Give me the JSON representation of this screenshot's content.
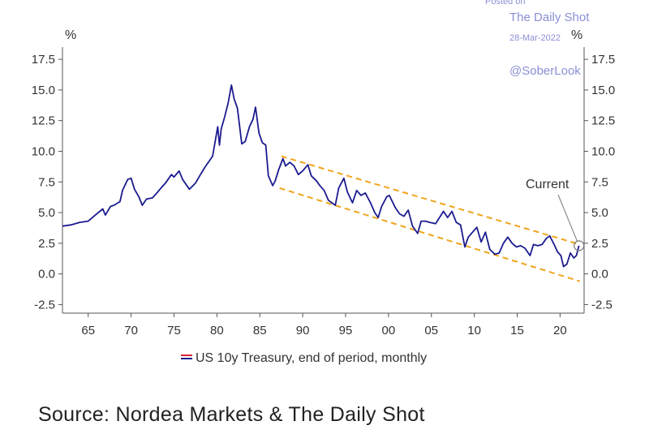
{
  "watermark": {
    "posted": "Posted on",
    "site": "The Daily Shot",
    "date": "28-Mar-2022",
    "handle": "@SoberLook"
  },
  "source_text": "Source: Nordea Markets & The Daily Shot",
  "chart_data": {
    "type": "line",
    "title": "",
    "xlabel": "",
    "ylabel": "%",
    "ylabel_right": "%",
    "xlim": [
      1962,
      2022.8
    ],
    "ylim": [
      -3.2,
      18.5
    ],
    "x_ticks": [
      1965,
      1970,
      1975,
      1980,
      1985,
      1990,
      1995,
      2000,
      2005,
      2010,
      2015,
      2020
    ],
    "x_tick_labels": [
      "65",
      "70",
      "75",
      "80",
      "85",
      "90",
      "95",
      "00",
      "05",
      "10",
      "15",
      "20"
    ],
    "y_ticks": [
      -2.5,
      0,
      2.5,
      5,
      7.5,
      10,
      12.5,
      15,
      17.5
    ],
    "y_tick_labels": [
      "-2.5",
      "0.0",
      "2.5",
      "5.0",
      "7.5",
      "10.0",
      "12.5",
      "15.0",
      "17.5"
    ],
    "series": [
      {
        "name": "US 10y Treasury, end of period, monthly",
        "color": "#1b1b8f",
        "x": [
          1962,
          1963,
          1964,
          1965,
          1966,
          1966.7,
          1967,
          1967.6,
          1968,
          1968.7,
          1969,
          1969.6,
          1970,
          1970.4,
          1970.9,
          1971.3,
          1971.8,
          1972.5,
          1973,
          1973.6,
          1974,
          1974.7,
          1975,
          1975.6,
          1976,
          1976.8,
          1977.5,
          1978,
          1978.6,
          1979,
          1979.5,
          1980.1,
          1980.3,
          1980.5,
          1980.9,
          1981.3,
          1981.7,
          1982,
          1982.4,
          1982.9,
          1983.3,
          1983.8,
          1984.2,
          1984.5,
          1984.9,
          1985.3,
          1985.7,
          1986,
          1986.5,
          1986.8,
          1987.2,
          1987.7,
          1988,
          1988.5,
          1989,
          1989.5,
          1990,
          1990.6,
          1991,
          1991.6,
          1992,
          1992.5,
          1993,
          1993.8,
          1994.2,
          1994.8,
          1995.2,
          1995.8,
          1996.3,
          1996.8,
          1997.3,
          1997.9,
          1998.4,
          1998.8,
          1999.2,
          1999.8,
          2000.1,
          2000.8,
          2001.3,
          2001.8,
          2002.3,
          2002.8,
          2003.4,
          2003.8,
          2004.3,
          2004.8,
          2005.5,
          2006.4,
          2006.9,
          2007.4,
          2007.9,
          2008.4,
          2008.9,
          2009.3,
          2009.8,
          2010.3,
          2010.8,
          2011.3,
          2011.8,
          2012.4,
          2012.9,
          2013.4,
          2013.9,
          2014.4,
          2014.9,
          2015.4,
          2015.9,
          2016.5,
          2016.9,
          2017.4,
          2017.9,
          2018.4,
          2018.8,
          2019.3,
          2019.7,
          2020.1,
          2020.4,
          2020.8,
          2021.2,
          2021.6,
          2021.9,
          2022.2
        ],
        "y": [
          3.9,
          4.0,
          4.2,
          4.3,
          4.9,
          5.3,
          4.8,
          5.5,
          5.6,
          5.9,
          6.8,
          7.7,
          7.8,
          6.9,
          6.3,
          5.6,
          6.1,
          6.2,
          6.6,
          7.1,
          7.4,
          8.1,
          7.9,
          8.4,
          7.7,
          6.9,
          7.4,
          8.0,
          8.7,
          9.1,
          9.6,
          12.0,
          10.5,
          11.8,
          12.8,
          13.9,
          15.4,
          14.3,
          13.5,
          10.6,
          10.8,
          12.0,
          12.6,
          13.6,
          11.5,
          10.7,
          10.5,
          8.0,
          7.2,
          7.6,
          8.5,
          9.4,
          8.8,
          9.1,
          8.8,
          8.1,
          8.4,
          8.9,
          8.0,
          7.6,
          7.2,
          6.8,
          6.0,
          5.6,
          7.0,
          7.8,
          6.7,
          5.8,
          6.8,
          6.4,
          6.6,
          5.8,
          5.0,
          4.6,
          5.5,
          6.3,
          6.4,
          5.4,
          4.9,
          4.7,
          5.2,
          3.9,
          3.3,
          4.3,
          4.3,
          4.2,
          4.1,
          5.1,
          4.6,
          5.1,
          4.2,
          4.0,
          2.2,
          3.0,
          3.4,
          3.8,
          2.6,
          3.4,
          2.0,
          1.6,
          1.7,
          2.5,
          3.0,
          2.5,
          2.2,
          2.3,
          2.1,
          1.5,
          2.4,
          2.3,
          2.4,
          2.9,
          3.1,
          2.4,
          1.8,
          1.5,
          0.6,
          0.8,
          1.7,
          1.3,
          1.5,
          2.3
        ]
      }
    ],
    "annotations": [
      {
        "label": "Current",
        "x": 2022.2,
        "y": 2.3
      },
      {
        "label": "trend channel upper",
        "x": [
          1987.5,
          2022.3
        ],
        "y": [
          9.6,
          2.4
        ]
      },
      {
        "label": "trend channel lower",
        "x": [
          1987.3,
          2022.3
        ],
        "y": [
          7.0,
          -0.6
        ]
      }
    ],
    "legend": {
      "position": "bottom",
      "label": "US 10y Treasury, end of period, monthly"
    },
    "grid": false
  }
}
